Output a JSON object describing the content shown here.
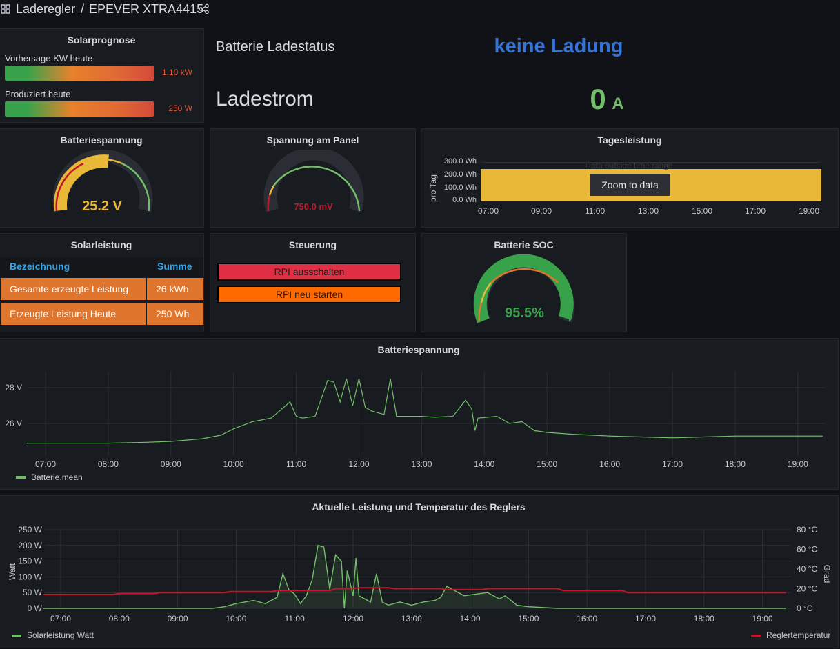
{
  "header": {
    "breadcrumb_folder": "Laderegler",
    "breadcrumb_sep": "/",
    "dashboard_title": "EPEVER XTRA4415"
  },
  "solarprognose": {
    "title": "Solarprognose",
    "rows": [
      {
        "label": "Vorhersage KW heute",
        "value": "1.10 kW"
      },
      {
        "label": "Produziert heute",
        "value": "250 W"
      }
    ]
  },
  "status": {
    "label": "Batterie Ladestatus",
    "value": "keine Ladung",
    "value_color": "#3274d9"
  },
  "ladestrom": {
    "label": "Ladestrom",
    "value": "0",
    "unit": "A",
    "value_color": "#73bf69"
  },
  "gauges": {
    "batteriespannung": {
      "title": "Batteriespannung",
      "value": "25.2 V",
      "fraction": 0.55,
      "color": "#eab839"
    },
    "panel": {
      "title": "Spannung am Panel",
      "value": "750.0 mV",
      "fraction": 0.0,
      "color": "#c4162a"
    },
    "soc": {
      "title": "Batterie SOC",
      "value": "95.5%",
      "fraction": 0.955,
      "color": "#37a24a"
    }
  },
  "tagesleistung": {
    "title": "Tagesleistung",
    "ylabel": "pro Tag",
    "yticks": [
      "300.0 Wh",
      "200.0 Wh",
      "100.0 Wh",
      "0.0 Wh"
    ],
    "xticks": [
      "07:00",
      "09:00",
      "11:00",
      "13:00",
      "15:00",
      "17:00",
      "19:00"
    ],
    "notice": "Data outside time range",
    "zoom_button": "Zoom to data",
    "fill_color": "#eab839"
  },
  "solarleistung": {
    "title": "Solarleistung",
    "columns": [
      "Bezeichnung",
      "Summe"
    ],
    "rows": [
      {
        "name": "Gesamte erzeugte Leistung",
        "value": "26 kWh"
      },
      {
        "name": "Erzeugte Leistung Heute",
        "value": "250 Wh"
      }
    ]
  },
  "steuerung": {
    "title": "Steuerung",
    "buttons": [
      {
        "label": "RPI ausschalten",
        "color": "#e02f44"
      },
      {
        "label": "RPI neu starten",
        "color": "#ff6a00"
      }
    ]
  },
  "chart_data": [
    {
      "type": "line",
      "title": "Batteriespannung",
      "xlabel": "",
      "ylabel": "",
      "xticks": [
        "07:00",
        "08:00",
        "09:00",
        "10:00",
        "11:00",
        "12:00",
        "13:00",
        "14:00",
        "15:00",
        "16:00",
        "17:00",
        "18:00",
        "19:00"
      ],
      "yticks": [
        "28 V",
        "26 V"
      ],
      "ylim": [
        24.7,
        29.0
      ],
      "legend": "bottom-left",
      "series": [
        {
          "name": "Batterie.mean",
          "color": "#73bf69",
          "x": [
            6.7,
            8.0,
            8.6,
            9.0,
            9.5,
            9.8,
            10.0,
            10.3,
            10.6,
            10.9,
            11.0,
            11.1,
            11.3,
            11.5,
            11.6,
            11.7,
            11.8,
            11.9,
            12.0,
            12.1,
            12.2,
            12.3,
            12.4,
            12.5,
            12.6,
            12.8,
            13.0,
            13.2,
            13.5,
            13.7,
            13.8,
            13.85,
            13.9,
            14.2,
            14.4,
            14.6,
            14.8,
            15.0,
            15.4,
            15.7,
            16.0,
            16.5,
            17.0,
            17.5,
            18.0,
            18.5,
            19.0,
            19.4
          ],
          "y": [
            24.9,
            24.9,
            24.95,
            25.0,
            25.15,
            25.35,
            25.7,
            26.1,
            26.3,
            27.2,
            26.4,
            26.3,
            26.4,
            28.4,
            28.3,
            27.2,
            28.5,
            27.0,
            28.5,
            26.9,
            26.7,
            26.6,
            26.5,
            28.5,
            26.4,
            26.4,
            26.4,
            26.35,
            26.4,
            27.3,
            26.8,
            25.6,
            26.3,
            26.4,
            26.0,
            26.1,
            25.6,
            25.5,
            25.4,
            25.35,
            25.3,
            25.25,
            25.2,
            25.25,
            25.3,
            25.3,
            25.3,
            25.3
          ]
        }
      ]
    },
    {
      "type": "line",
      "title": "Aktuelle Leistung und Temperatur des Reglers",
      "xlabel": "",
      "ylabel": "Watt",
      "y2label": "Grad",
      "xticks": [
        "07:00",
        "08:00",
        "09:00",
        "10:00",
        "11:00",
        "12:00",
        "13:00",
        "14:00",
        "15:00",
        "16:00",
        "17:00",
        "18:00",
        "19:00"
      ],
      "yticks": [
        "250 W",
        "200 W",
        "150 W",
        "100 W",
        "50 W",
        "0 W"
      ],
      "y2ticks": [
        "80 °C",
        "60 °C",
        "40 °C",
        "20 °C",
        "0 °C"
      ],
      "ylim": [
        0,
        250
      ],
      "y2lim": [
        0,
        80
      ],
      "legend": "bottom",
      "series": [
        {
          "name": "Solarleistung Watt",
          "color": "#73bf69",
          "axis": "left",
          "x": [
            6.7,
            9.6,
            9.8,
            10.0,
            10.3,
            10.5,
            10.7,
            10.8,
            10.9,
            11.0,
            11.1,
            11.2,
            11.3,
            11.4,
            11.5,
            11.6,
            11.7,
            11.8,
            11.85,
            11.9,
            12.0,
            12.05,
            12.1,
            12.3,
            12.4,
            12.5,
            12.6,
            12.8,
            13.0,
            13.2,
            13.4,
            13.5,
            13.6,
            13.7,
            13.8,
            13.9,
            14.1,
            14.3,
            14.5,
            14.6,
            14.8,
            15.0,
            15.5,
            19.4
          ],
          "y": [
            0,
            0,
            5,
            15,
            25,
            15,
            35,
            110,
            60,
            45,
            15,
            40,
            90,
            200,
            195,
            60,
            170,
            150,
            0,
            120,
            40,
            160,
            40,
            20,
            110,
            20,
            10,
            20,
            10,
            20,
            25,
            35,
            70,
            60,
            50,
            40,
            45,
            50,
            30,
            40,
            10,
            5,
            0,
            0
          ]
        },
        {
          "name": "Reglertemperatur",
          "color": "#c4162a",
          "axis": "right",
          "x": [
            6.7,
            7.9,
            8.0,
            8.6,
            8.7,
            9.8,
            9.9,
            10.6,
            10.7,
            11.6,
            11.7,
            12.0,
            12.1,
            12.6,
            12.7,
            13.5,
            13.6,
            14.2,
            14.3,
            15.5,
            15.6,
            16.6,
            16.7,
            19.4
          ],
          "y": [
            14,
            14,
            15,
            15,
            16,
            16,
            17,
            17,
            18,
            18,
            20,
            20,
            21,
            21,
            20,
            20,
            19,
            19,
            20,
            20,
            18,
            18,
            16,
            16
          ]
        }
      ]
    }
  ]
}
